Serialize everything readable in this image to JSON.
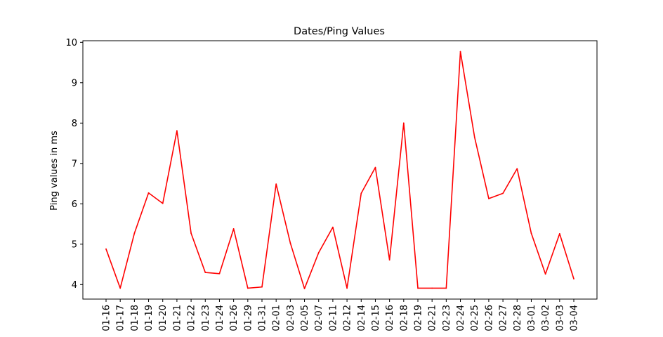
{
  "chart_data": {
    "type": "line",
    "title": "Dates/Ping Values",
    "xlabel": "",
    "ylabel": "Ping values in ms",
    "x": [
      "01-16",
      "01-17",
      "01-18",
      "01-19",
      "01-20",
      "01-21",
      "01-22",
      "01-23",
      "01-24",
      "01-26",
      "01-29",
      "01-31",
      "02-01",
      "02-03",
      "02-05",
      "02-07",
      "02-11",
      "02-12",
      "02-14",
      "02-15",
      "02-16",
      "02-18",
      "02-19",
      "02-21",
      "02-23",
      "02-24",
      "02-25",
      "02-26",
      "02-27",
      "02-28",
      "03-01",
      "03-02",
      "03-03",
      "03-04"
    ],
    "series": [
      {
        "values": [
          4.88,
          3.91,
          5.27,
          6.27,
          6.01,
          7.81,
          5.27,
          4.3,
          4.27,
          5.38,
          3.91,
          3.94,
          6.49,
          5.03,
          3.9,
          4.79,
          5.42,
          3.91,
          6.26,
          6.9,
          4.61,
          8.0,
          3.91,
          3.91,
          3.91,
          9.77,
          7.65,
          6.13,
          6.26,
          6.87,
          5.27,
          4.26,
          5.26,
          4.14
        ],
        "color": "#ff0000"
      }
    ],
    "ylim": [
      3.64,
      10.04
    ],
    "yticks": [
      4,
      5,
      6,
      7,
      8,
      9,
      10
    ],
    "grid": false,
    "legend": "none"
  }
}
